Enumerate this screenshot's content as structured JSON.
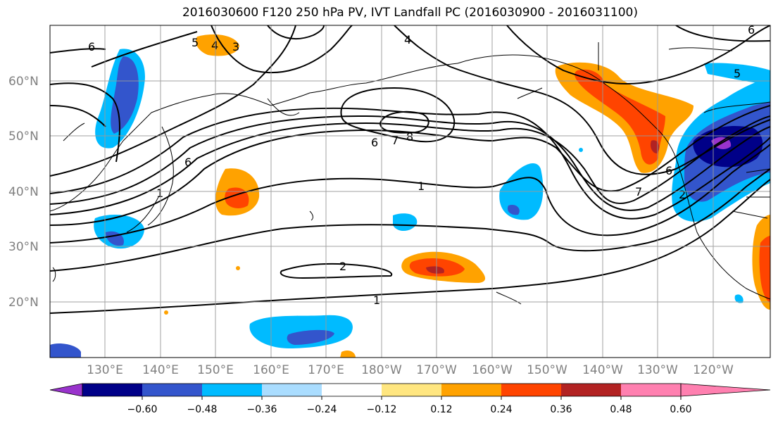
{
  "title": "2016030600 F120 250 hPa PV, IVT Landfall PC (2016030900 - 2016031100)",
  "latitude_labels": [
    "60°N",
    "50°N",
    "40°N",
    "30°N",
    "20°N"
  ],
  "longitude_labels": [
    "130°E",
    "140°E",
    "150°E",
    "160°E",
    "170°E",
    "180°W",
    "170°W",
    "160°W",
    "150°W",
    "140°W",
    "130°W",
    "120°W"
  ],
  "colorbar": {
    "tick_labels": [
      "−0.60",
      "−0.48",
      "−0.36",
      "−0.24",
      "−0.12",
      "0.12",
      "0.24",
      "0.36",
      "0.48",
      "0.60"
    ],
    "colors": [
      "#9933cc",
      "#000088",
      "#3355cc",
      "#00bbff",
      "#aaddff",
      "#ffffff",
      "#ffe680",
      "#ffa200",
      "#ff4400",
      "#b22222",
      "#ff80b0"
    ]
  },
  "contour_labels": [
    "6",
    "5",
    "4",
    "3",
    "6",
    "7",
    "8",
    "1",
    "2",
    "1",
    "6",
    "1",
    "6",
    "7",
    "2",
    "4",
    "5",
    "6"
  ]
}
